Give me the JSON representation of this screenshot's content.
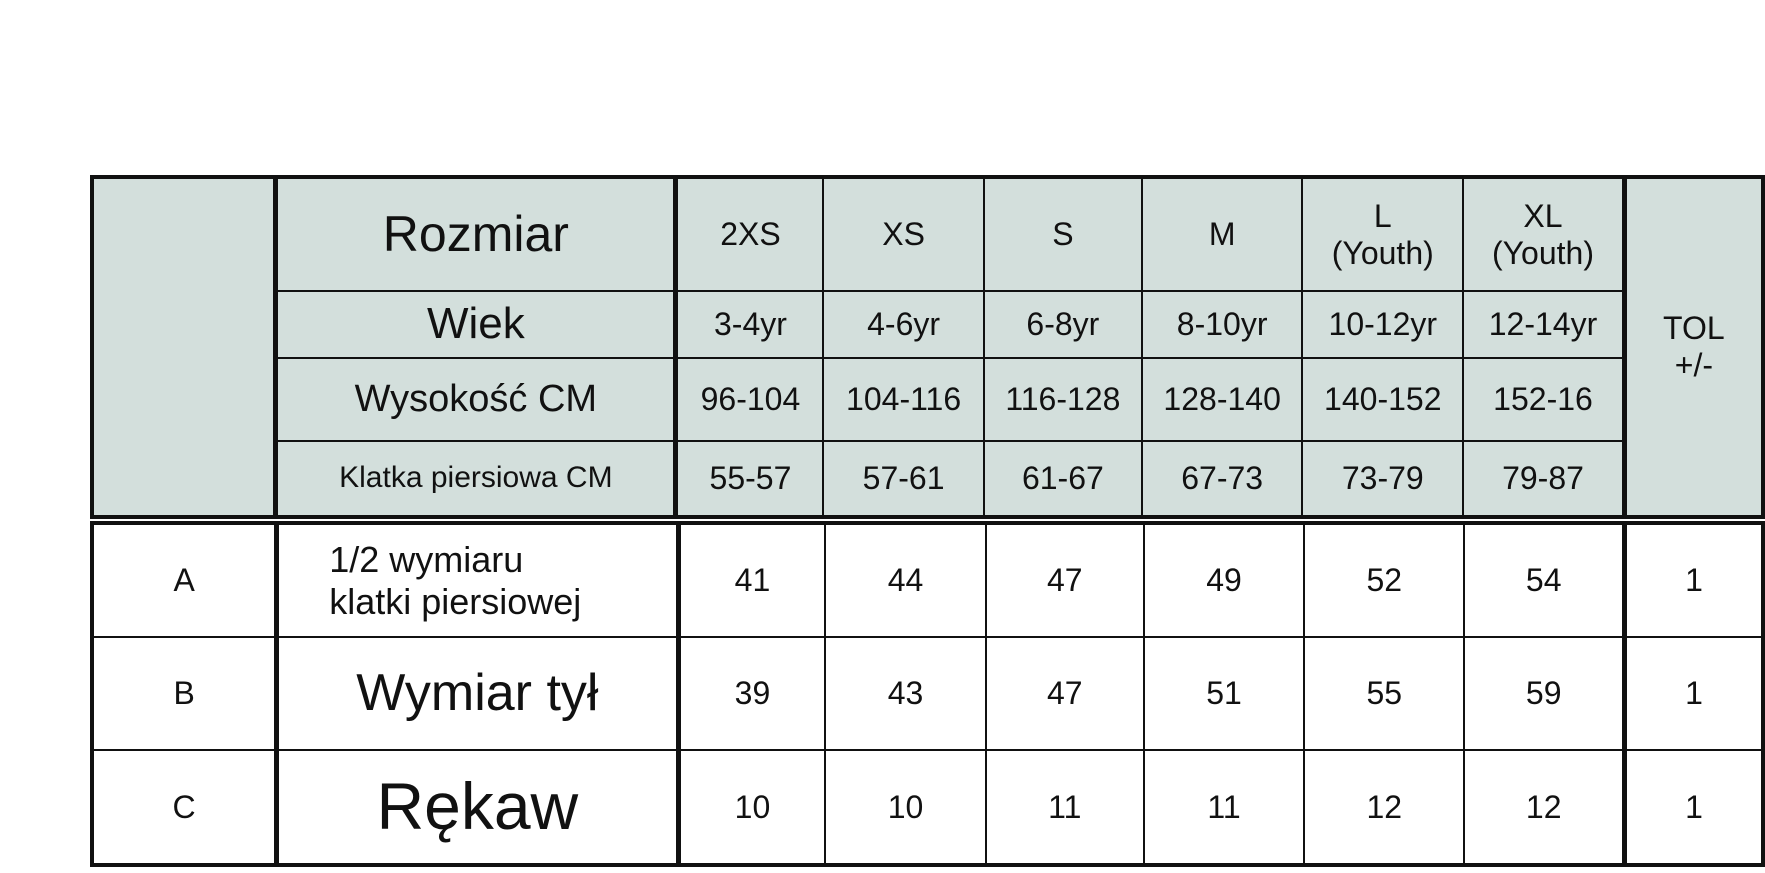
{
  "header": {
    "row_labels": [
      "Rozmiar",
      "Wiek",
      "Wysokość CM",
      "Klatka piersiowa CM"
    ],
    "sizes": [
      {
        "name": "2XS",
        "sub": "",
        "age": "3-4yr",
        "height": "96-104",
        "chest": "55-57"
      },
      {
        "name": "XS",
        "sub": "",
        "age": "4-6yr",
        "height": "104-116",
        "chest": "57-61"
      },
      {
        "name": "S",
        "sub": "",
        "age": "6-8yr",
        "height": "116-128",
        "chest": "61-67"
      },
      {
        "name": "M",
        "sub": "",
        "age": "8-10yr",
        "height": "128-140",
        "chest": "67-73"
      },
      {
        "name": "L",
        "sub": "(Youth)",
        "age": "10-12yr",
        "height": "140-152",
        "chest": "73-79"
      },
      {
        "name": "XL",
        "sub": "(Youth)",
        "age": "12-14yr",
        "height": "152-16",
        "chest": "79-87"
      }
    ],
    "tol_label": "TOL",
    "tol_sub": "+/-"
  },
  "rows": [
    {
      "code": "A",
      "label": "1/2 wymiaru",
      "label2": "klatki piersiowej",
      "values": [
        "41",
        "44",
        "47",
        "49",
        "52",
        "54"
      ],
      "tol": "1"
    },
    {
      "code": "B",
      "label": "Wymiar tył",
      "label2": "",
      "values": [
        "39",
        "43",
        "47",
        "51",
        "55",
        "59"
      ],
      "tol": "1"
    },
    {
      "code": "C",
      "label": "Rękaw",
      "label2": "",
      "values": [
        "10",
        "10",
        "11",
        "11",
        "12",
        "12"
      ],
      "tol": "1"
    }
  ]
}
